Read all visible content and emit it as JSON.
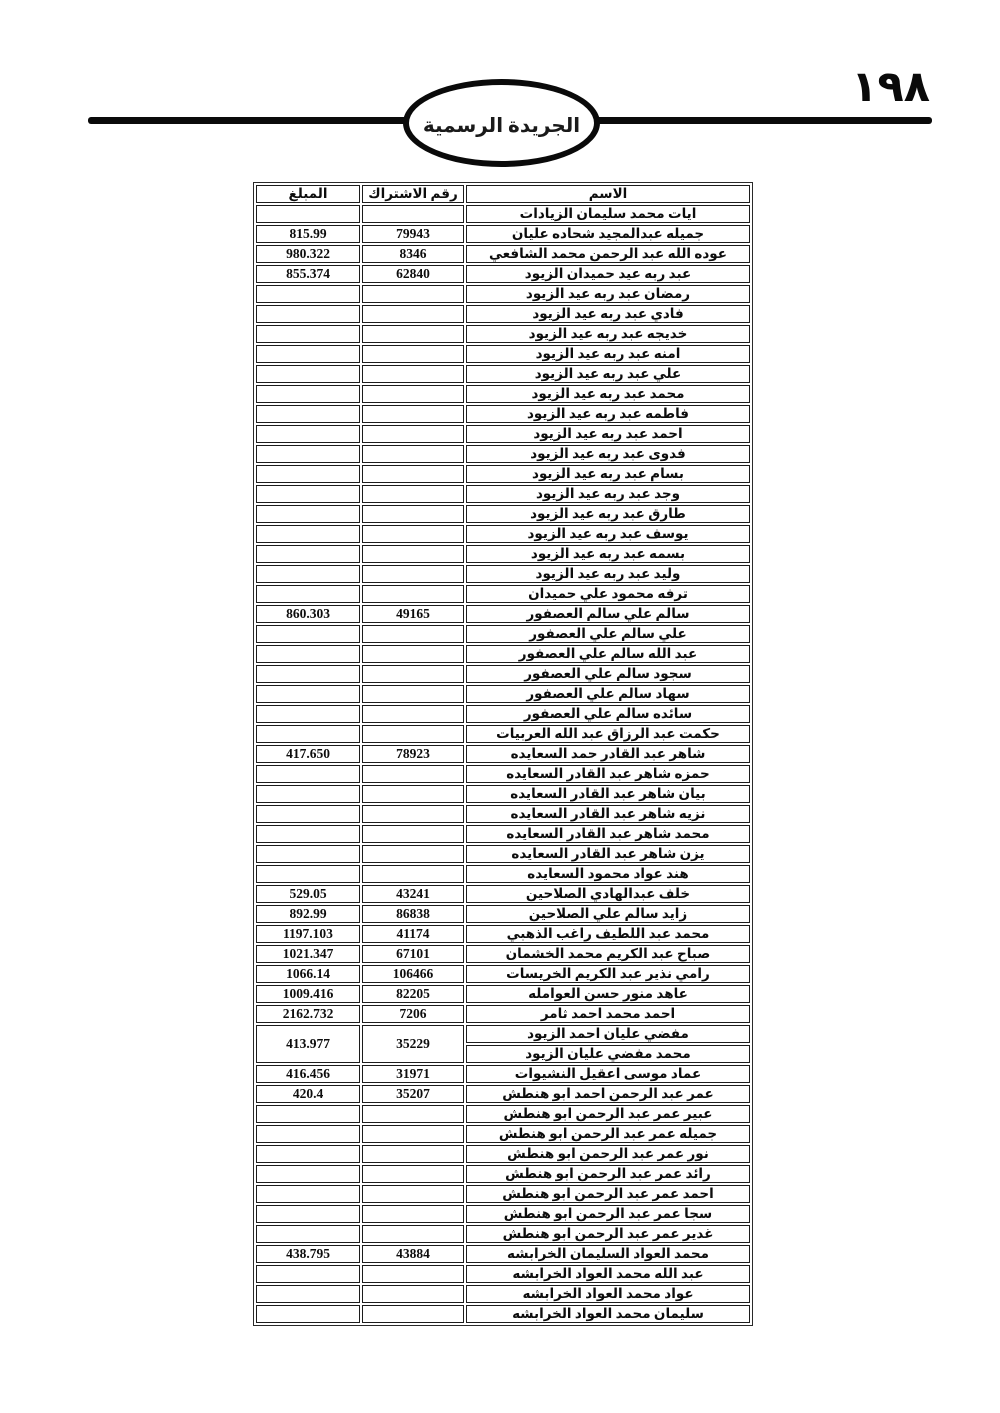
{
  "page": {
    "number": "١٩٨",
    "banner_title": "الجريدة الرسمية"
  },
  "table": {
    "headers": {
      "name": "الاسم",
      "subscription": "رقم الاشتراك",
      "amount": "المبلغ"
    },
    "rows": [
      {
        "name": "ايات محمد سليمان الزيادات",
        "subscription": "",
        "amount": ""
      },
      {
        "name": "جميله عبدالمجيد شحاده عليان",
        "subscription": "79943",
        "amount": "815.99"
      },
      {
        "name": "عوده الله عبد الرحمن محمد الشافعي",
        "subscription": "8346",
        "amount": "980.322"
      },
      {
        "name": "عبد ربه عيد حميدان الزيود",
        "subscription": "62840",
        "amount": "855.374"
      },
      {
        "name": "رمضان عبد ربه عيد الزيود",
        "subscription": "",
        "amount": ""
      },
      {
        "name": "فادي عبد ربه عيد الزيود",
        "subscription": "",
        "amount": ""
      },
      {
        "name": "خديجه عبد ربه عيد الزيود",
        "subscription": "",
        "amount": ""
      },
      {
        "name": "امنه عبد ربه عيد الزيود",
        "subscription": "",
        "amount": ""
      },
      {
        "name": "علي عبد ربه عيد الزيود",
        "subscription": "",
        "amount": ""
      },
      {
        "name": "محمد عبد ربه عيد الزيود",
        "subscription": "",
        "amount": ""
      },
      {
        "name": "فاطمه عبد ربه عيد الزيود",
        "subscription": "",
        "amount": ""
      },
      {
        "name": "احمد عبد ربه عيد الزيود",
        "subscription": "",
        "amount": ""
      },
      {
        "name": "فدوى عبد ربه عيد الزيود",
        "subscription": "",
        "amount": ""
      },
      {
        "name": "بسام عبد ربه عيد الزيود",
        "subscription": "",
        "amount": ""
      },
      {
        "name": "وجد عبد ربه عيد الزيود",
        "subscription": "",
        "amount": ""
      },
      {
        "name": "طارق عبد ربه عيد الزيود",
        "subscription": "",
        "amount": ""
      },
      {
        "name": "يوسف عبد ربه عيد الزيود",
        "subscription": "",
        "amount": ""
      },
      {
        "name": "بسمه عبد ربه عيد الزيود",
        "subscription": "",
        "amount": ""
      },
      {
        "name": "وليد عبد ربه عيد الزيود",
        "subscription": "",
        "amount": ""
      },
      {
        "name": "ترفه محمود علي حميدان",
        "subscription": "",
        "amount": ""
      },
      {
        "name": "سالم علي سالم العصفور",
        "subscription": "49165",
        "amount": "860.303"
      },
      {
        "name": "علي سالم علي العصفور",
        "subscription": "",
        "amount": ""
      },
      {
        "name": "عبد الله سالم علي العصفور",
        "subscription": "",
        "amount": ""
      },
      {
        "name": "سجود سالم علي العصفور",
        "subscription": "",
        "amount": ""
      },
      {
        "name": "سهاد سالم علي العصفور",
        "subscription": "",
        "amount": ""
      },
      {
        "name": "سائده سالم علي العصفور",
        "subscription": "",
        "amount": ""
      },
      {
        "name": "حكمت عبد الرزاق عبد الله العربيات",
        "subscription": "",
        "amount": ""
      },
      {
        "name": "شاهر عبد القادر حمد السعايده",
        "subscription": "78923",
        "amount": "417.650"
      },
      {
        "name": "حمزه شاهر عبد القادر السعايده",
        "subscription": "",
        "amount": ""
      },
      {
        "name": "بيان شاهر عبد القادر السعايده",
        "subscription": "",
        "amount": ""
      },
      {
        "name": "نزيه شاهر عبد القادر السعايده",
        "subscription": "",
        "amount": ""
      },
      {
        "name": "محمد شاهر عبد القادر السعايده",
        "subscription": "",
        "amount": ""
      },
      {
        "name": "يزن شاهر عبد القادر السعايده",
        "subscription": "",
        "amount": ""
      },
      {
        "name": "هند عواد محمود السعايده",
        "subscription": "",
        "amount": ""
      },
      {
        "name": "خلف عبدالهادي الصلاحين",
        "subscription": "43241",
        "amount": "529.05"
      },
      {
        "name": "زايد سالم علي الصلاحين",
        "subscription": "86838",
        "amount": "892.99"
      },
      {
        "name": "محمد عبد اللطيف راغب الذهبي",
        "subscription": "41174",
        "amount": "1197.103"
      },
      {
        "name": "صباح عبد الكريم محمد الخشمان",
        "subscription": "67101",
        "amount": "1021.347"
      },
      {
        "name": "رامي نذير عبد الكريم الخريسات",
        "subscription": "106466",
        "amount": "1066.14"
      },
      {
        "name": "عاهد منور حسن العوامله",
        "subscription": "82205",
        "amount": "1009.416"
      },
      {
        "name": "احمد محمد احمد ثامر",
        "subscription": "7206",
        "amount": "2162.732"
      },
      {
        "name": "مفضي عليان احمد الزيود",
        "subscription": "35229",
        "amount": "413.977",
        "rowspan": 2
      },
      {
        "name": "محمد مفضي عليان الزيود",
        "name_only": true
      },
      {
        "name": "عماد موسى اعقيل النشيوات",
        "subscription": "31971",
        "amount": "416.456"
      },
      {
        "name": "عمر عبد الرحمن احمد ابو هنطش",
        "subscription": "35207",
        "amount": "420.4"
      },
      {
        "name": "عبير عمر عبد الرحمن ابو هنطش",
        "subscription": "",
        "amount": ""
      },
      {
        "name": "جميله عمر عبد الرحمن ابو هنطش",
        "subscription": "",
        "amount": ""
      },
      {
        "name": "نور عمر عبد الرحمن ابو هنطش",
        "subscription": "",
        "amount": ""
      },
      {
        "name": "رائد عمر عبد الرحمن ابو هنطش",
        "subscription": "",
        "amount": ""
      },
      {
        "name": "احمد عمر عبد الرحمن ابو هنطش",
        "subscription": "",
        "amount": ""
      },
      {
        "name": "سجا عمر عبد الرحمن ابو هنطش",
        "subscription": "",
        "amount": ""
      },
      {
        "name": "غدير عمر عبد الرحمن ابو هنطش",
        "subscription": "",
        "amount": ""
      },
      {
        "name": "محمد العواد السليمان الخرابشه",
        "subscription": "43884",
        "amount": "438.795"
      },
      {
        "name": "عبد الله محمد العواد الخرابشه",
        "subscription": "",
        "amount": ""
      },
      {
        "name": "عواد محمد العواد الخرابشه",
        "subscription": "",
        "amount": ""
      },
      {
        "name": "سليمان محمد العواد الخرابشه",
        "subscription": "",
        "amount": ""
      }
    ]
  }
}
